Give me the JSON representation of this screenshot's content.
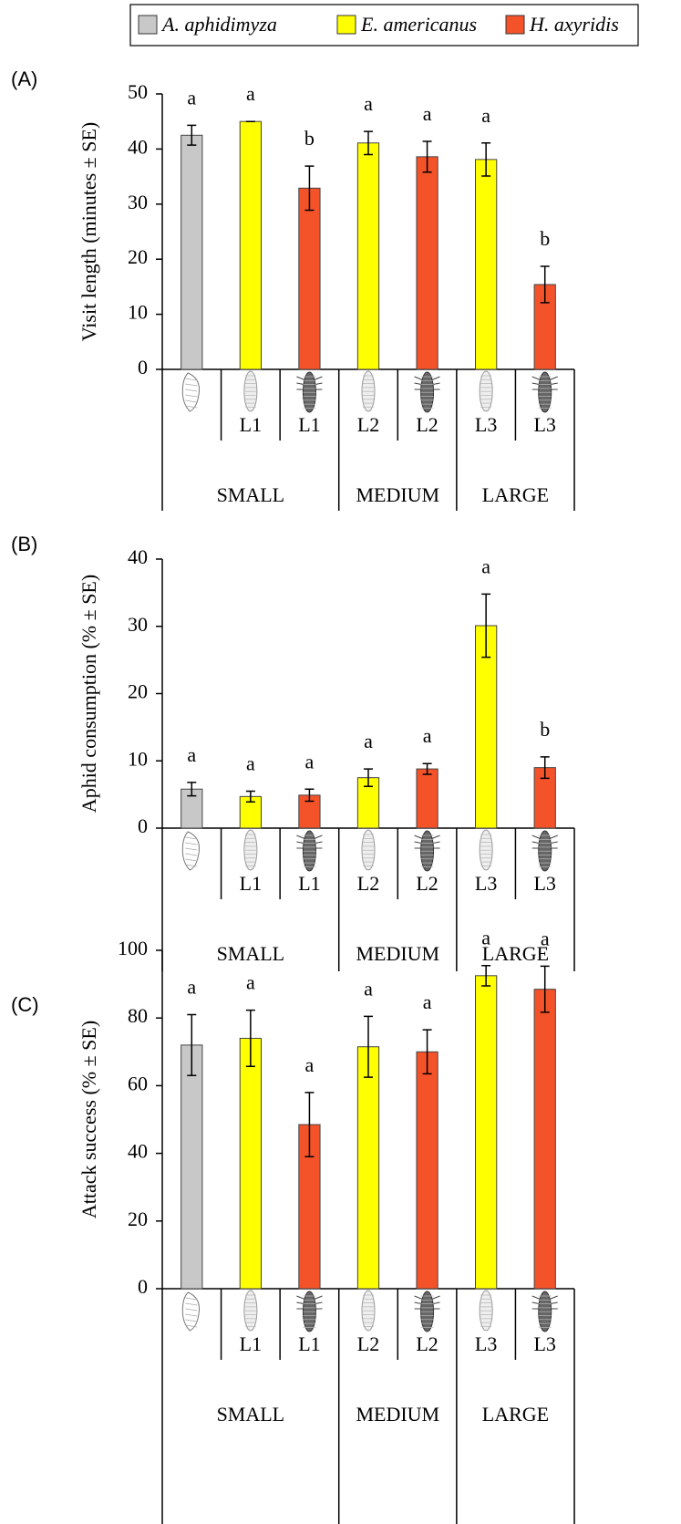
{
  "legend": {
    "position": "top-right",
    "entries": [
      {
        "name": "A. aphidimyza",
        "color": "#c8c8c8"
      },
      {
        "name": "E. americanus",
        "color": "#ffff00"
      },
      {
        "name": "H. axyridis",
        "color": "#f4532a"
      }
    ]
  },
  "chart_data": [
    {
      "type": "bar",
      "panel": "(A)",
      "y_label": "Visit length (minutes ± SE)",
      "groups": [
        {
          "label": "SMALL",
          "categories": [
            null,
            "L1",
            "L1"
          ]
        },
        {
          "label": "MEDIUM",
          "categories": [
            "L2",
            "L2"
          ]
        },
        {
          "label": "LARGE",
          "categories": [
            "L3",
            "L3"
          ]
        }
      ],
      "series": [
        {
          "values": [
            42.5,
            null,
            null,
            null,
            null,
            null,
            null
          ],
          "errors": [
            1.8,
            null,
            null,
            null,
            null,
            null,
            null
          ]
        },
        {
          "values": [
            null,
            45,
            null,
            41.1,
            null,
            38.1,
            null
          ],
          "errors": [
            null,
            0,
            null,
            2.1,
            null,
            3,
            null
          ]
        },
        {
          "values": [
            null,
            null,
            32.9,
            null,
            38.6,
            null,
            15.4
          ],
          "errors": [
            null,
            null,
            4,
            null,
            2.8,
            null,
            3.3
          ]
        }
      ],
      "letters": [
        "a",
        "a",
        "b",
        "a",
        "a",
        "a",
        "b"
      ],
      "ylim": [
        0,
        50
      ],
      "yticks": [
        0,
        10,
        20,
        30,
        40,
        50
      ]
    },
    {
      "type": "bar",
      "panel": "(B)",
      "y_label": "Aphid consumption (% ± SE)",
      "groups": [
        {
          "label": "SMALL",
          "categories": [
            null,
            "L1",
            "L1"
          ]
        },
        {
          "label": "MEDIUM",
          "categories": [
            "L2",
            "L2"
          ]
        },
        {
          "label": "LARGE",
          "categories": [
            "L3",
            "L3"
          ]
        }
      ],
      "series": [
        {
          "values": [
            5.8,
            null,
            null,
            null,
            null,
            null,
            null
          ],
          "errors": [
            1,
            null,
            null,
            null,
            null,
            null,
            null
          ]
        },
        {
          "values": [
            null,
            4.7,
            null,
            7.5,
            null,
            30.1,
            null
          ],
          "errors": [
            null,
            0.8,
            null,
            1.3,
            null,
            4.7,
            null
          ]
        },
        {
          "values": [
            null,
            null,
            4.9,
            null,
            8.8,
            null,
            9
          ],
          "errors": [
            null,
            null,
            0.9,
            null,
            0.8,
            null,
            1.6
          ]
        }
      ],
      "letters": [
        "a",
        "a",
        "a",
        "a",
        "a",
        "a",
        "b"
      ],
      "ylim": [
        0,
        40
      ],
      "yticks": [
        0,
        10,
        20,
        30,
        40
      ]
    },
    {
      "type": "bar",
      "panel": "(C)",
      "y_label": "Attack success (% ± SE)",
      "groups": [
        {
          "label": "SMALL",
          "categories": [
            null,
            "L1",
            "L1"
          ]
        },
        {
          "label": "MEDIUM",
          "categories": [
            "L2",
            "L2"
          ]
        },
        {
          "label": "LARGE",
          "categories": [
            "L3",
            "L3"
          ]
        }
      ],
      "series": [
        {
          "values": [
            72,
            null,
            null,
            null,
            null,
            null,
            null
          ],
          "errors": [
            9,
            null,
            null,
            null,
            null,
            null,
            null
          ]
        },
        {
          "values": [
            null,
            74,
            null,
            71.5,
            null,
            92.5,
            null
          ],
          "errors": [
            null,
            8.3,
            null,
            9,
            null,
            3,
            null
          ]
        },
        {
          "values": [
            null,
            null,
            48.5,
            null,
            70,
            null,
            88.5
          ],
          "errors": [
            null,
            null,
            9.5,
            null,
            6.5,
            null,
            6.8
          ]
        }
      ],
      "letters": [
        "a",
        "a",
        "a",
        "a",
        "a",
        "a",
        "a"
      ],
      "ylim": [
        0,
        100
      ],
      "yticks": [
        0,
        20,
        40,
        60,
        80,
        100
      ]
    }
  ]
}
